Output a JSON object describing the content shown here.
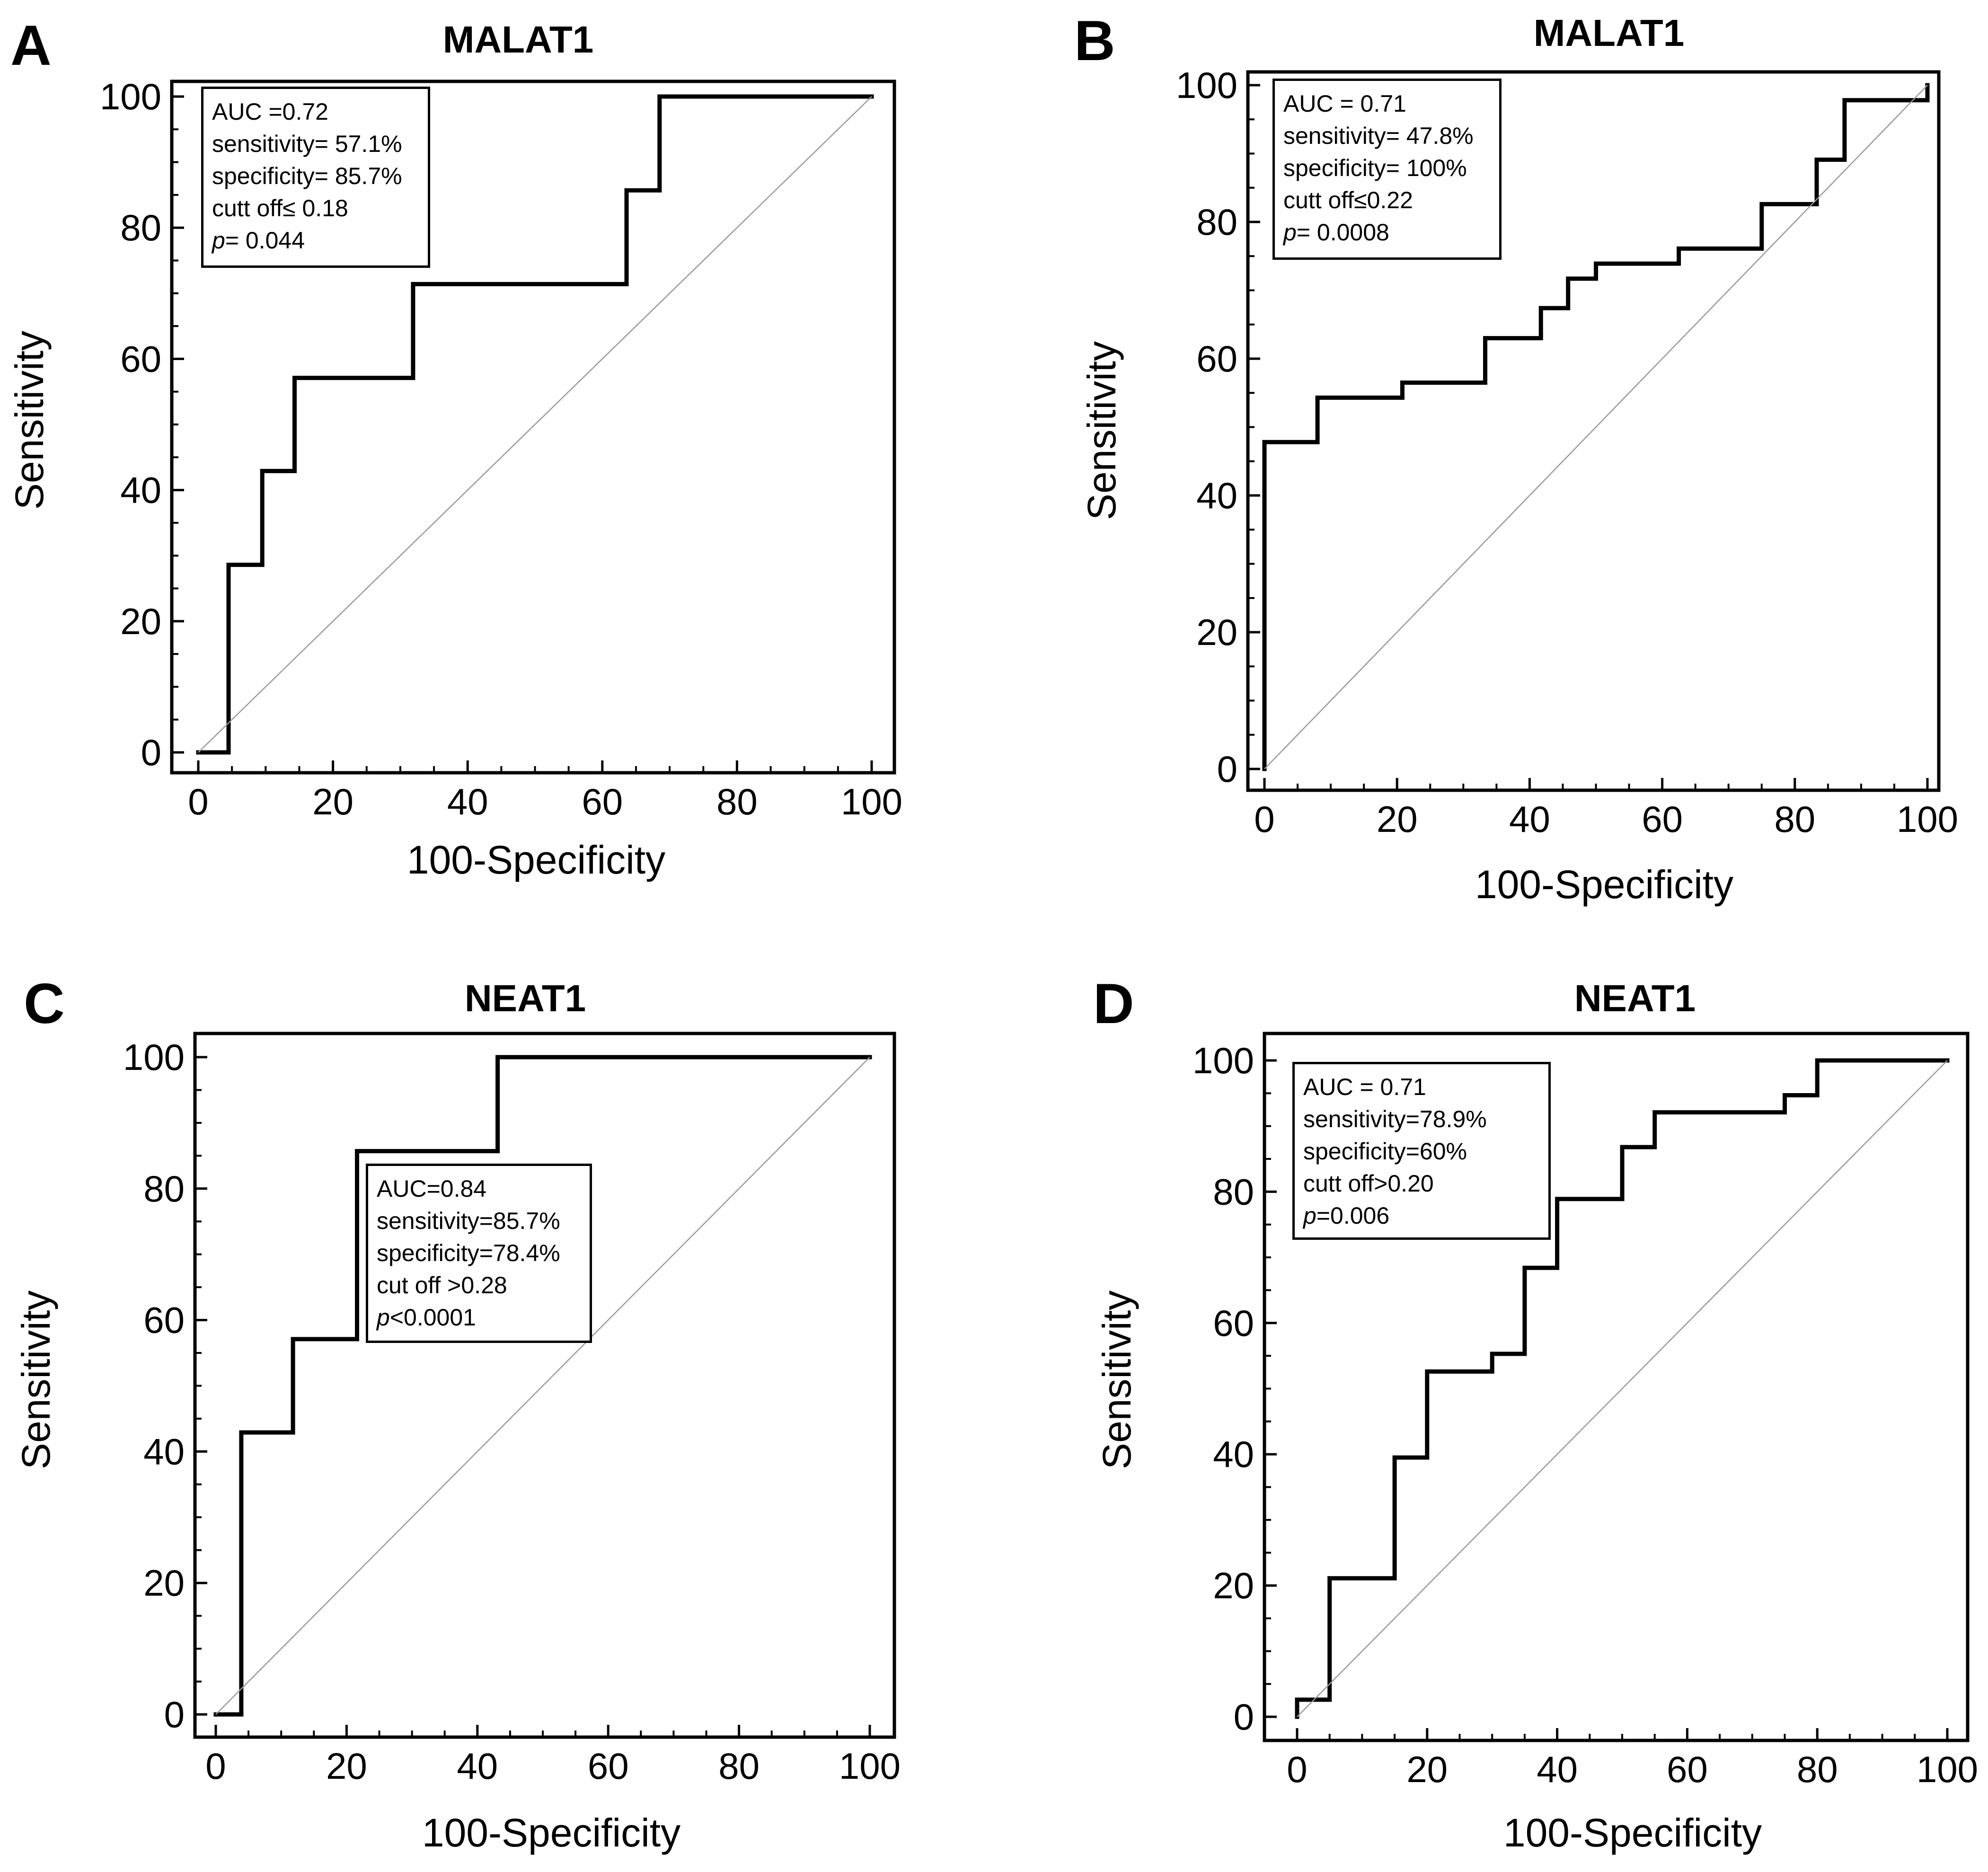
{
  "panels": [
    {
      "letter": "A",
      "title": "MALAT1",
      "stats": {
        "auc": "AUC =0.72",
        "sensitivity": "sensitivity= 57.1%",
        "specificity": "specificity= 85.7%",
        "cutoff": "cutt off≤ 0.18",
        "p_label": "p",
        "p_value": "= 0.044"
      }
    },
    {
      "letter": "B",
      "title": "MALAT1",
      "stats": {
        "auc": "AUC = 0.71",
        "sensitivity": "sensitivity= 47.8%",
        "specificity": "specificity= 100%",
        "cutoff": "cutt off≤0.22",
        "p_label": "p",
        "p_value": "= 0.0008"
      }
    },
    {
      "letter": "C",
      "title": "NEAT1",
      "stats": {
        "auc": "AUC=0.84",
        "sensitivity": "sensitivity=85.7%",
        "specificity": "specificity=78.4%",
        "cutoff": "cut off >0.28",
        "p_label": "p",
        "p_value": "<0.0001"
      }
    },
    {
      "letter": "D",
      "title": "NEAT1",
      "stats": {
        "auc": "AUC = 0.71",
        "sensitivity": "sensitivity=78.9%",
        "specificity": "specificity=60%",
        "cutoff": "cutt off>0.20",
        "p_label": "p",
        "p_value": "=0.006"
      }
    }
  ],
  "chart_data": [
    {
      "type": "line",
      "title": "MALAT1",
      "xlabel": "100-Specificity",
      "ylabel": "Sensitivity",
      "xlim": [
        0,
        100
      ],
      "ylim": [
        0,
        100
      ],
      "xticks": [
        0,
        20,
        40,
        60,
        80,
        100
      ],
      "yticks": [
        0,
        20,
        40,
        60,
        80,
        100
      ],
      "series": [
        {
          "name": "ROC",
          "x": [
            0,
            4.5,
            4.5,
            9.5,
            9.5,
            14.3,
            14.3,
            31.9,
            31.9,
            63.6,
            63.6,
            68.5,
            68.5,
            100
          ],
          "y": [
            0,
            0,
            28.6,
            28.6,
            42.9,
            42.9,
            57.1,
            57.1,
            71.4,
            71.4,
            85.7,
            85.7,
            100,
            100
          ]
        },
        {
          "name": "reference",
          "x": [
            0,
            100
          ],
          "y": [
            0,
            100
          ]
        }
      ]
    },
    {
      "type": "line",
      "title": "MALAT1",
      "xlabel": "100-Specificity",
      "ylabel": "Sensitivity",
      "xlim": [
        0,
        100
      ],
      "ylim": [
        0,
        100
      ],
      "xticks": [
        0,
        20,
        40,
        60,
        80,
        100
      ],
      "yticks": [
        0,
        20,
        40,
        60,
        80,
        100
      ],
      "series": [
        {
          "name": "ROC",
          "x": [
            0,
            0,
            8,
            8,
            20.8,
            20.8,
            33.3,
            33.3,
            41.7,
            41.7,
            45.8,
            45.8,
            50,
            50,
            62.5,
            62.5,
            75,
            75,
            83.3,
            83.3,
            87.5,
            87.5,
            100,
            100
          ],
          "y": [
            0,
            47.8,
            47.8,
            54.3,
            54.3,
            56.5,
            56.5,
            63,
            63,
            67.4,
            67.4,
            71.7,
            71.7,
            73.9,
            73.9,
            76.1,
            76.1,
            82.6,
            82.6,
            89.1,
            89.1,
            97.8,
            97.8,
            100
          ]
        },
        {
          "name": "reference",
          "x": [
            0,
            100
          ],
          "y": [
            0,
            100
          ]
        }
      ]
    },
    {
      "type": "line",
      "title": "NEAT1",
      "xlabel": "100-Specificity",
      "ylabel": "Sensitivity",
      "xlim": [
        0,
        100
      ],
      "ylim": [
        0,
        100
      ],
      "xticks": [
        0,
        20,
        40,
        60,
        80,
        100
      ],
      "yticks": [
        0,
        20,
        40,
        60,
        80,
        100
      ],
      "series": [
        {
          "name": "ROC",
          "x": [
            0,
            3.9,
            3.9,
            11.8,
            11.8,
            21.6,
            21.6,
            43.1,
            43.1,
            100
          ],
          "y": [
            0,
            0,
            42.9,
            42.9,
            57.1,
            57.1,
            85.7,
            85.7,
            100,
            100
          ]
        },
        {
          "name": "reference",
          "x": [
            0,
            100
          ],
          "y": [
            0,
            100
          ]
        }
      ]
    },
    {
      "type": "line",
      "title": "NEAT1",
      "xlabel": "100-Specificity",
      "ylabel": "Sensitivity",
      "xlim": [
        0,
        100
      ],
      "ylim": [
        0,
        100
      ],
      "xticks": [
        0,
        20,
        40,
        60,
        80,
        100
      ],
      "yticks": [
        0,
        20,
        40,
        60,
        80,
        100
      ],
      "series": [
        {
          "name": "ROC",
          "x": [
            0,
            0,
            5,
            5,
            15,
            15,
            20,
            20,
            30,
            30,
            35,
            35,
            40,
            40,
            50,
            50,
            55,
            55,
            75,
            75,
            80,
            80,
            100
          ],
          "y": [
            0,
            2.6,
            2.6,
            21.1,
            21.1,
            39.5,
            39.5,
            52.6,
            52.6,
            55.3,
            55.3,
            68.4,
            68.4,
            78.9,
            78.9,
            86.8,
            86.8,
            92.1,
            92.1,
            94.7,
            94.7,
            100,
            100
          ]
        },
        {
          "name": "reference",
          "x": [
            0,
            100
          ],
          "y": [
            0,
            100
          ]
        }
      ]
    }
  ]
}
